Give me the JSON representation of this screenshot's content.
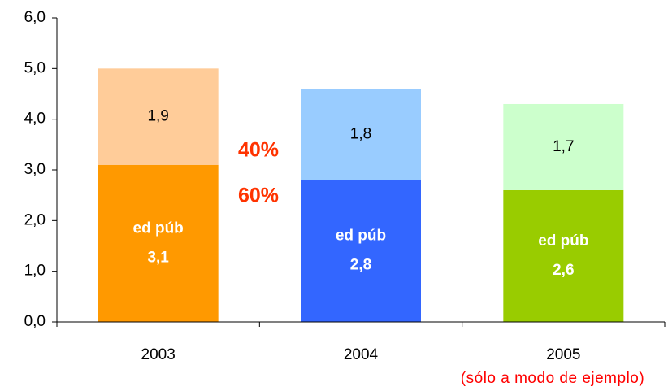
{
  "chart_data": {
    "type": "stacked-bar",
    "categories": [
      "2003",
      "2004",
      "2005"
    ],
    "series": [
      {
        "name": "ed púb",
        "colors": [
          "#ff9900",
          "#3366ff",
          "#99cc00"
        ],
        "values": [
          3.1,
          2.8,
          2.6
        ],
        "value_labels": [
          "3,1",
          "2,8",
          "2,6"
        ]
      },
      {
        "colors": [
          "#ffcc99",
          "#99ccff",
          "#ccffcc"
        ],
        "values": [
          1.9,
          1.8,
          1.7
        ],
        "value_labels": [
          "1,9",
          "1,8",
          "1,7"
        ]
      }
    ],
    "ylim": [
      0,
      6
    ],
    "yticks": [
      {
        "value": 0,
        "label": "0,0"
      },
      {
        "value": 1,
        "label": "1,0"
      },
      {
        "value": 2,
        "label": "2,0"
      },
      {
        "value": 3,
        "label": "3,0"
      },
      {
        "value": 4,
        "label": "4,0"
      },
      {
        "value": 5,
        "label": "5,0"
      },
      {
        "value": 6,
        "label": "6,0"
      }
    ],
    "annotations": [
      "40%",
      "60%",
      "(sólo a modo de ejemplo)"
    ]
  }
}
